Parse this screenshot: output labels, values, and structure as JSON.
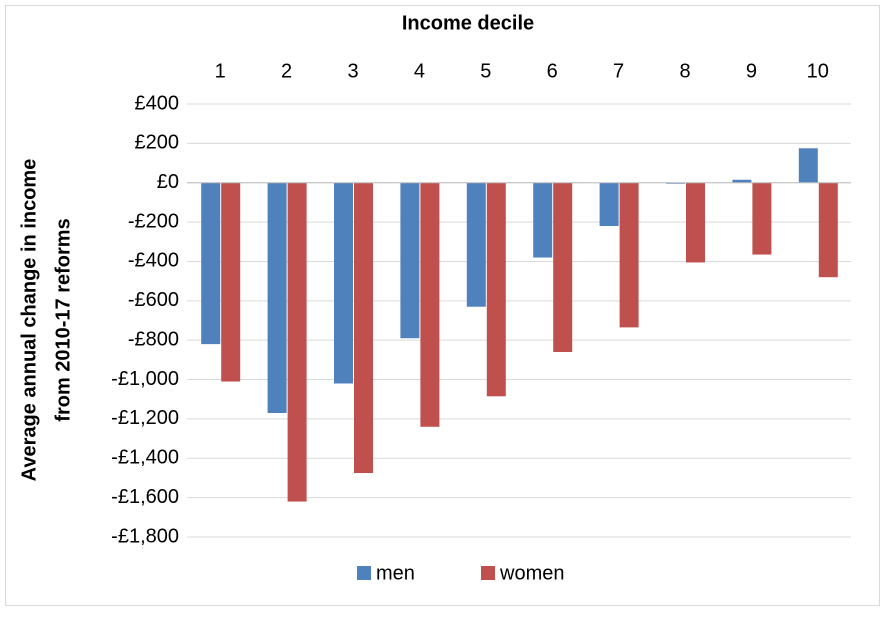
{
  "chart_data": {
    "type": "bar",
    "title": "Income decile",
    "ylabel": [
      "Average annual change in income",
      "from 2010-17 reforms"
    ],
    "categories": [
      "1",
      "2",
      "3",
      "4",
      "5",
      "6",
      "7",
      "8",
      "9",
      "10"
    ],
    "series": [
      {
        "name": "men",
        "color": "#4f81bd",
        "values": [
          -820,
          -1170,
          -1020,
          -790,
          -630,
          -380,
          -220,
          -5,
          15,
          175
        ]
      },
      {
        "name": "women",
        "color": "#c0504d",
        "values": [
          -1010,
          -1620,
          -1475,
          -1240,
          -1085,
          -860,
          -735,
          -405,
          -365,
          -480
        ]
      }
    ],
    "ylim": [
      -1800,
      400
    ],
    "yticks": [
      {
        "value": 400,
        "label": "£400"
      },
      {
        "value": 200,
        "label": "£200"
      },
      {
        "value": 0,
        "label": "£0"
      },
      {
        "value": -200,
        "label": "-£200"
      },
      {
        "value": -400,
        "label": "-£400"
      },
      {
        "value": -600,
        "label": "-£600"
      },
      {
        "value": -800,
        "label": "-£800"
      },
      {
        "value": -1000,
        "label": "-£1,000"
      },
      {
        "value": -1200,
        "label": "-£1,200"
      },
      {
        "value": -1400,
        "label": "-£1,400"
      },
      {
        "value": -1600,
        "label": "-£1,600"
      },
      {
        "value": -1800,
        "label": "-£1,800"
      }
    ],
    "grid": true,
    "legend": "bottom"
  }
}
